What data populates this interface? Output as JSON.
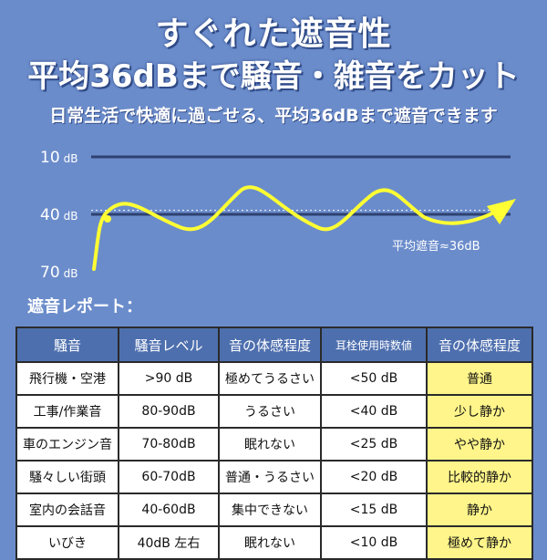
{
  "header": {
    "title": "すぐれた遮音性",
    "headline": "平均36dBまで騒音・雑音をカット",
    "subtitle": "日常生活で快適に過ごせる、平均36dBまで遮音できます"
  },
  "chart_data": {
    "type": "line",
    "y_ticks": [
      {
        "value": 10,
        "label": "10",
        "unit": "dB"
      },
      {
        "value": 40,
        "label": "40",
        "unit": "dB"
      },
      {
        "value": 70,
        "label": "70",
        "unit": "dB"
      }
    ],
    "ylim": [
      10,
      70
    ],
    "y_inverted": true,
    "average_value": 36,
    "average_label": "平均遮音≈36dB",
    "line_color": "#ffff33",
    "grid": true
  },
  "report": {
    "title": "遮音レポート：",
    "headers": [
      "騒音",
      "騒音レベル",
      "音の体感程度",
      "耳栓使用時数値",
      "音の体感程度"
    ],
    "rows": [
      [
        "飛行機・空港",
        ">90 dB",
        "極めてうるさい",
        "<50 dB",
        "普通"
      ],
      [
        "工事/作業音",
        "80-90dB",
        "うるさい",
        "<40 dB",
        "少し静か"
      ],
      [
        "車のエンジン音",
        "70-80dB",
        "眠れない",
        "<25 dB",
        "やや静か"
      ],
      [
        "騒々しい街頭",
        "60-70dB",
        "普通・うるさい",
        "<20 dB",
        "比較的静か"
      ],
      [
        "室内の会話音",
        "40-60dB",
        "集中できない",
        "<15 dB",
        "静か"
      ],
      [
        "いびき",
        "40dB 左右",
        "眠れない",
        "<10 dB",
        "極めて静か"
      ]
    ]
  },
  "colors": {
    "background": "#6b8ccb",
    "header_cell": "#4e6fae",
    "highlight_cell": "#fff58a"
  }
}
